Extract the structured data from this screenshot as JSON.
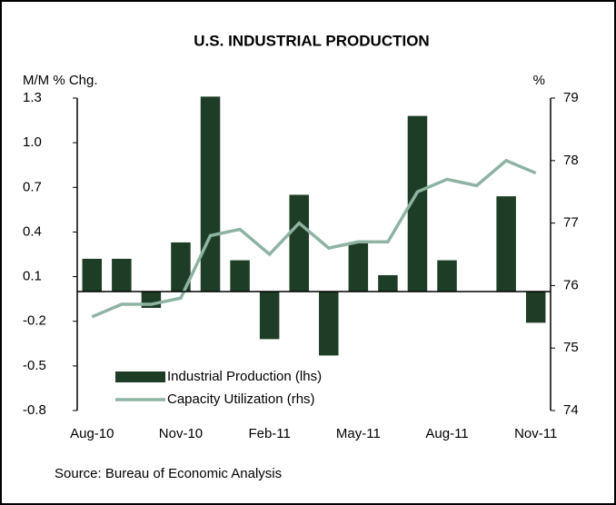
{
  "chart_data": {
    "type": "bar-line",
    "title": "U.S. INDUSTRIAL PRODUCTION",
    "y_label": "M/M % Chg.",
    "y2_label": "%",
    "source": "Source: Bureau of Economic Analysis",
    "categories": [
      "Aug-10",
      null,
      null,
      "Nov-10",
      null,
      null,
      "Feb-11",
      null,
      null,
      "May-11",
      null,
      null,
      "Aug-11",
      null,
      null,
      "Nov-11"
    ],
    "series": [
      {
        "name": "Industrial Production (lhs)",
        "type": "bar",
        "color": "#1e3d26",
        "values": [
          0.22,
          0.22,
          -0.11,
          0.33,
          1.31,
          0.21,
          -0.32,
          0.65,
          -0.43,
          0.33,
          0.11,
          1.18,
          0.21,
          0.0,
          0.64,
          -0.21
        ]
      },
      {
        "name": "Capacity Utilization (rhs)",
        "type": "line",
        "axis": "y2",
        "color": "#8fb3a3",
        "values": [
          75.5,
          75.7,
          75.7,
          75.8,
          76.8,
          76.9,
          76.5,
          77.0,
          76.6,
          76.7,
          76.7,
          77.5,
          77.7,
          77.6,
          78.0,
          77.8
        ]
      }
    ],
    "ylim": [
      -0.8,
      1.3
    ],
    "yticks": [
      -0.8,
      -0.5,
      -0.2,
      0.1,
      0.4,
      0.7,
      {
        "value": 1,
        "label": "1.0"
      },
      1.3
    ],
    "y2lim": [
      74,
      79
    ],
    "y2ticks": [
      74,
      75,
      76,
      77,
      78,
      79
    ]
  }
}
